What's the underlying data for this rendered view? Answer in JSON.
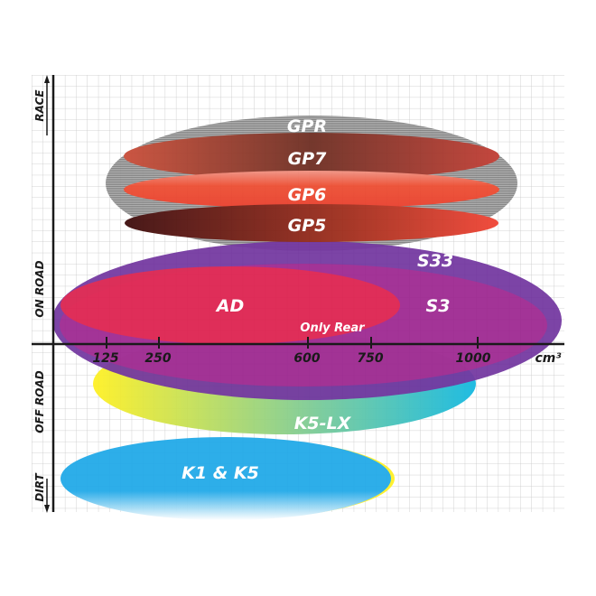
{
  "axes": {
    "x_ticks": [
      "125",
      "250",
      "600",
      "750",
      "1000"
    ],
    "x_unit": "cm³",
    "y_labels": [
      "RACE",
      "ON ROAD",
      "OFF ROAD",
      "DIRT"
    ]
  },
  "tires": [
    {
      "name": "GPR",
      "color": "#9a9a9a"
    },
    {
      "name": "GP7",
      "color": "#b8402c"
    },
    {
      "name": "GP6",
      "color": "#ea4a30"
    },
    {
      "name": "GP5",
      "color": "#7a1a10"
    },
    {
      "name": "S33",
      "color": "#6a2a9a"
    },
    {
      "name": "S3",
      "color": "#a3228c"
    },
    {
      "name": "AD",
      "color": "#e0204a"
    },
    {
      "name": "K5-LX",
      "color": "#20b8d8"
    },
    {
      "name": "K1 & K5",
      "color": "#1ea8e8"
    }
  ],
  "note": "Only Rear"
}
